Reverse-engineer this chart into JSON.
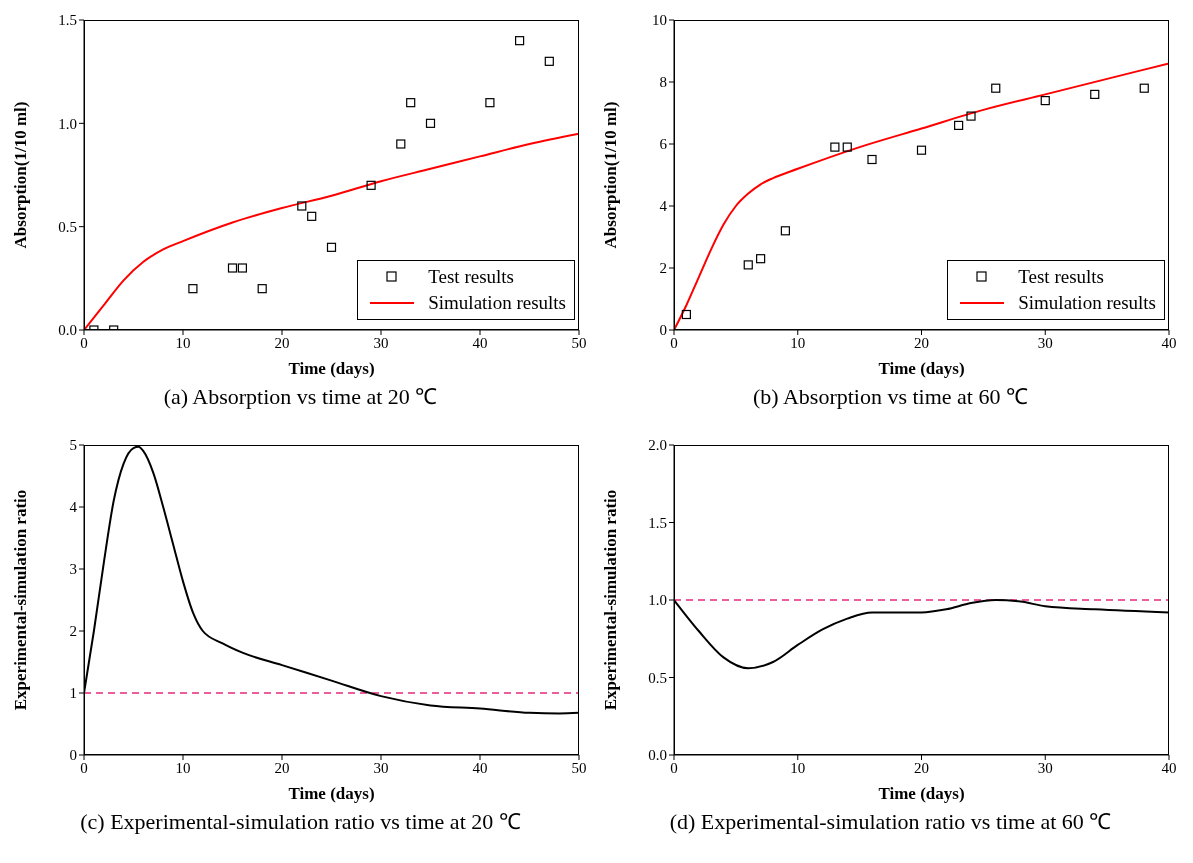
{
  "chart_data": [
    {
      "type": "scatter",
      "title": "(a) Absorption vs time at 20 ℃",
      "xlabel": "Time (days)",
      "ylabel": "Absorption(1/10 ml)",
      "xlim": [
        0,
        50
      ],
      "xticks": [
        0,
        10,
        20,
        30,
        40,
        50
      ],
      "ylim": [
        0,
        1.5
      ],
      "yticks": [
        {
          "value": 0,
          "label": "0.0"
        },
        {
          "value": 0.5,
          "label": "0.5"
        },
        {
          "value": 1,
          "label": "1.0"
        },
        {
          "value": 1.5,
          "label": "1.5"
        }
      ],
      "legend": "bottom right",
      "grid": false,
      "series": [
        {
          "name": "Test results",
          "marker": "square",
          "color": "#000000",
          "x": [
            1,
            3,
            11,
            15,
            16,
            18,
            22,
            23,
            25,
            29,
            32,
            33,
            35,
            41,
            44,
            47
          ],
          "values": [
            0,
            0,
            0.2,
            0.3,
            0.3,
            0.2,
            0.6,
            0.55,
            0.4,
            0.7,
            0.9,
            1.1,
            1.0,
            1.1,
            1.4,
            1.3
          ]
        },
        {
          "name": "Simulation results",
          "type": "line",
          "line_style": "solid",
          "color": "#ff0000",
          "x": [
            0,
            2,
            4,
            6,
            8,
            10,
            15,
            20,
            25,
            30,
            35,
            40,
            45,
            50
          ],
          "values": [
            0,
            0.12,
            0.24,
            0.33,
            0.39,
            0.43,
            0.52,
            0.59,
            0.65,
            0.72,
            0.78,
            0.84,
            0.9,
            0.95
          ]
        }
      ]
    },
    {
      "type": "scatter",
      "title": "(b) Absorption vs time at 60 ℃",
      "xlabel": "Time (days)",
      "ylabel": "Absorption(1/10 ml)",
      "xlim": [
        0,
        40
      ],
      "xticks": [
        0,
        10,
        20,
        30,
        40
      ],
      "ylim": [
        0,
        10
      ],
      "yticks": [
        0,
        2,
        4,
        6,
        8,
        10
      ],
      "legend": "bottom right",
      "grid": false,
      "series": [
        {
          "name": "Test results",
          "marker": "square",
          "color": "#000000",
          "x": [
            1,
            6,
            7,
            9,
            13,
            14,
            16,
            20,
            23,
            24,
            26,
            30,
            34,
            38
          ],
          "values": [
            0.5,
            2.1,
            2.3,
            3.2,
            5.9,
            5.9,
            5.5,
            5.8,
            6.6,
            6.9,
            7.8,
            7.4,
            7.6,
            7.8
          ]
        },
        {
          "name": "Simulation results",
          "type": "line",
          "line_style": "solid",
          "color": "#ff0000",
          "x": [
            0,
            1,
            2,
            3,
            4,
            5,
            6,
            7,
            8,
            10,
            15,
            20,
            25,
            30,
            35,
            40
          ],
          "values": [
            0,
            0.8,
            1.7,
            2.6,
            3.4,
            4.0,
            4.4,
            4.7,
            4.9,
            5.2,
            5.9,
            6.5,
            7.1,
            7.6,
            8.1,
            8.6
          ]
        }
      ]
    },
    {
      "type": "line",
      "title": "(c) Experimental-simulation ratio vs time at 20 ℃",
      "xlabel": "Time (days)",
      "ylabel": "Experimental-simulation ratio",
      "xlim": [
        0,
        50
      ],
      "xticks": [
        0,
        10,
        20,
        30,
        40,
        50
      ],
      "ylim": [
        0,
        5
      ],
      "yticks": [
        0,
        1,
        2,
        3,
        4,
        5
      ],
      "legend": false,
      "grid": false,
      "ref_lines": [
        {
          "axis": "y",
          "value": 1,
          "color": "#e8287f",
          "line_style": "dashed"
        }
      ],
      "series": [
        {
          "line_style": "solid",
          "color": "#000000",
          "x": [
            0,
            1,
            2,
            3,
            4,
            5,
            5.5,
            6,
            7,
            8,
            9,
            10,
            11,
            12,
            14,
            16,
            20,
            25,
            30,
            35,
            40,
            45,
            48,
            50
          ],
          "values": [
            1,
            2.0,
            3.1,
            4.1,
            4.7,
            4.95,
            4.97,
            4.9,
            4.55,
            4.0,
            3.4,
            2.8,
            2.3,
            2.0,
            1.8,
            1.65,
            1.45,
            1.2,
            0.95,
            0.8,
            0.75,
            0.68,
            0.67,
            0.68
          ]
        }
      ]
    },
    {
      "type": "line",
      "title": "(d) Experimental-simulation ratio vs time at 60 ℃",
      "xlabel": "Time (days)",
      "ylabel": "Experimental-simulation ratio",
      "xlim": [
        0,
        40
      ],
      "xticks": [
        0,
        10,
        20,
        30,
        40
      ],
      "ylim": [
        0,
        2
      ],
      "yticks": [
        {
          "value": 0,
          "label": "0.0"
        },
        {
          "value": 0.5,
          "label": "0.5"
        },
        {
          "value": 1,
          "label": "1.0"
        },
        {
          "value": 1.5,
          "label": "1.5"
        },
        {
          "value": 2,
          "label": "2.0"
        }
      ],
      "legend": false,
      "grid": false,
      "ref_lines": [
        {
          "axis": "y",
          "value": 1,
          "color": "#e8287f",
          "line_style": "dashed"
        }
      ],
      "series": [
        {
          "line_style": "solid",
          "color": "#000000",
          "x": [
            0,
            2,
            4,
            6,
            8,
            10,
            12,
            14,
            16,
            18,
            20,
            22,
            24,
            26,
            28,
            30,
            34,
            40
          ],
          "values": [
            1,
            0.8,
            0.63,
            0.56,
            0.6,
            0.71,
            0.81,
            0.88,
            0.92,
            0.92,
            0.92,
            0.94,
            0.98,
            1.0,
            0.99,
            0.96,
            0.94,
            0.92
          ]
        }
      ]
    }
  ]
}
